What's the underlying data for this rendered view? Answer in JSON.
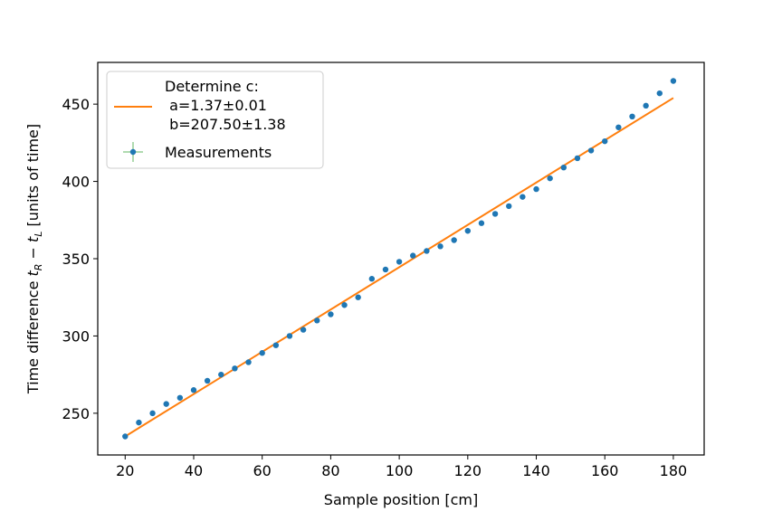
{
  "chart_data": {
    "type": "scatter",
    "title": "",
    "xlabel": "Sample position [cm]",
    "ylabel": {
      "prefix": "Time difference ",
      "t1": "t",
      "s1": "R",
      "minus": " − ",
      "t2": "t",
      "s2": "L",
      "suffix": " [units of time]"
    },
    "xlim": [
      12,
      189
    ],
    "ylim": [
      223,
      477
    ],
    "xticks": [
      20,
      40,
      60,
      80,
      100,
      120,
      140,
      160,
      180
    ],
    "yticks": [
      250,
      300,
      350,
      400,
      450
    ],
    "grid": false,
    "legend_position": "top-left",
    "series": [
      {
        "name": "Measurements",
        "kind": "points",
        "color": "#1f77b4",
        "errorbar_color": "#2ca02c",
        "x": [
          20,
          24,
          28,
          32,
          36,
          40,
          44,
          48,
          52,
          56,
          60,
          64,
          68,
          72,
          76,
          80,
          84,
          88,
          92,
          96,
          100,
          104,
          108,
          112,
          116,
          120,
          124,
          128,
          132,
          136,
          140,
          144,
          148,
          152,
          156,
          160,
          164,
          168,
          172,
          176,
          180
        ],
        "y": [
          235,
          244,
          250,
          256,
          260,
          265,
          271,
          275,
          279,
          283,
          289,
          294,
          300,
          304,
          310,
          314,
          320,
          325,
          337,
          343,
          348,
          352,
          355,
          358,
          362,
          368,
          373,
          379,
          384,
          390,
          395,
          402,
          409,
          415,
          420,
          426,
          435,
          442,
          449,
          457,
          465
        ]
      },
      {
        "name": "Determine c:\n a=1.37±0.01\n b=207.50±1.38",
        "name_lines": [
          "Determine c:",
          " a=1.37±0.01",
          " b=207.50±1.38"
        ],
        "kind": "line",
        "color": "#ff7f0e",
        "x": [
          20,
          180
        ],
        "y": [
          235,
          454
        ]
      }
    ]
  }
}
